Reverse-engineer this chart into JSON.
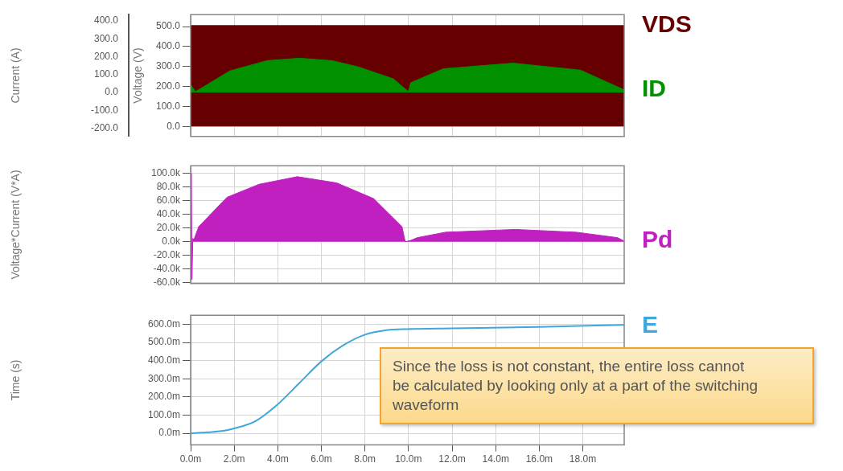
{
  "chart_data": [
    {
      "type": "area",
      "ylabel": "Voltage (V)",
      "y2label": "Current (A)",
      "xlim": [
        0,
        19.9
      ],
      "ylim": [
        -50,
        560
      ],
      "yticks": [
        {
          "value": 0,
          "label": "0.0"
        },
        {
          "value": 100,
          "label": "100.0"
        },
        {
          "value": 200,
          "label": "200.0"
        },
        {
          "value": 300,
          "label": "300.0"
        },
        {
          "value": 400,
          "label": "400.0"
        },
        {
          "value": 500,
          "label": "500.0"
        }
      ],
      "y2lim": [
        -245,
        435
      ],
      "y2ticks": [
        {
          "value": -200,
          "label": "-200.0"
        },
        {
          "value": -100,
          "label": "-100.0"
        },
        {
          "value": 0,
          "label": "0.0"
        },
        {
          "value": 100,
          "label": "100.0"
        },
        {
          "value": 200,
          "label": "200.0"
        },
        {
          "value": 300,
          "label": "300.0"
        },
        {
          "value": 400,
          "label": "400.0"
        }
      ],
      "grid": true,
      "tick_labels": "y",
      "series": [
        {
          "name": "VDS",
          "color": "#660000",
          "x": [
            0,
            19.9
          ],
          "values": [
            505,
            505
          ]
        },
        {
          "name": "ID",
          "color": "#009000",
          "axis": "y2",
          "x": [
            0,
            0.22,
            1.8,
            3.5,
            5,
            6.5,
            7.7,
            9.3,
            10,
            10.1,
            11.6,
            14.8,
            17.9,
            19.9
          ],
          "values": [
            45,
            5,
            121,
            178,
            192,
            178,
            143,
            77,
            5,
            55,
            133,
            164,
            125,
            15
          ]
        }
      ]
    },
    {
      "type": "area",
      "ylabel": "Voltage*Current (V*A)",
      "xlim": [
        0,
        19.9
      ],
      "ylim": [
        -61000,
        111000
      ],
      "yticks": [
        {
          "value": -60000,
          "label": "-60.0k"
        },
        {
          "value": -40000,
          "label": "-40.0k"
        },
        {
          "value": -20000,
          "label": "-20.0k"
        },
        {
          "value": 0,
          "label": "0.0k"
        },
        {
          "value": 20000,
          "label": "20.0k"
        },
        {
          "value": 40000,
          "label": "40.0k"
        },
        {
          "value": 60000,
          "label": "60.0k"
        },
        {
          "value": 80000,
          "label": "80.0k"
        },
        {
          "value": 100000,
          "label": "100.0k"
        }
      ],
      "grid": true,
      "tick_labels": "y",
      "series": [
        {
          "name": "Pd",
          "color": "#c020c0",
          "x": [
            0,
            0.03,
            0.06,
            0.1,
            0.15,
            0.37,
            1.67,
            3.15,
            4.9,
            6.7,
            8.4,
            9.7,
            9.85,
            10.1,
            10.4,
            11.7,
            14.9,
            17.7,
            19.6,
            19.9
          ],
          "values": [
            0,
            100000,
            -55000,
            5000,
            3000,
            22000,
            65000,
            84000,
            95000,
            86000,
            63000,
            22000,
            0,
            2000,
            6000,
            14000,
            18000,
            14000,
            6000,
            1000
          ]
        }
      ]
    },
    {
      "type": "line",
      "ylabel": "Time (s)",
      "xlim": [
        0,
        19.9
      ],
      "xticks": [
        {
          "value": 0,
          "label": "0.0m"
        },
        {
          "value": 2,
          "label": "2.0m"
        },
        {
          "value": 4,
          "label": "4.0m"
        },
        {
          "value": 6,
          "label": "6.0m"
        },
        {
          "value": 8,
          "label": "8.0m"
        },
        {
          "value": 10,
          "label": "10.0m"
        },
        {
          "value": 12,
          "label": "12.0m"
        },
        {
          "value": 14,
          "label": "14.0m"
        },
        {
          "value": 16,
          "label": "16.0m"
        },
        {
          "value": 18,
          "label": "18.0m"
        }
      ],
      "ylim": [
        -64,
        650
      ],
      "yticks": [
        {
          "value": 0,
          "label": "0.0m"
        },
        {
          "value": 100,
          "label": "100.0m"
        },
        {
          "value": 200,
          "label": "200.0m"
        },
        {
          "value": 300,
          "label": "300.0m"
        },
        {
          "value": 400,
          "label": "400.0m"
        },
        {
          "value": 500,
          "label": "500.0m"
        },
        {
          "value": 600,
          "label": "600.0m"
        }
      ],
      "grid": true,
      "annotations": [
        "Since the loss is not constant, the entire loss cannot be calculated by looking only at a part of the switching waveform"
      ],
      "series": [
        {
          "name": "E",
          "color": "#40a8d8",
          "x": [
            0,
            1.5,
            2,
            3,
            4,
            5,
            6,
            7,
            8,
            9,
            10,
            12,
            16,
            19.9
          ],
          "values": [
            0,
            14,
            27,
            69,
            160,
            278,
            396,
            484,
            543,
            568,
            574,
            578,
            586,
            597
          ]
        }
      ]
    }
  ]
}
